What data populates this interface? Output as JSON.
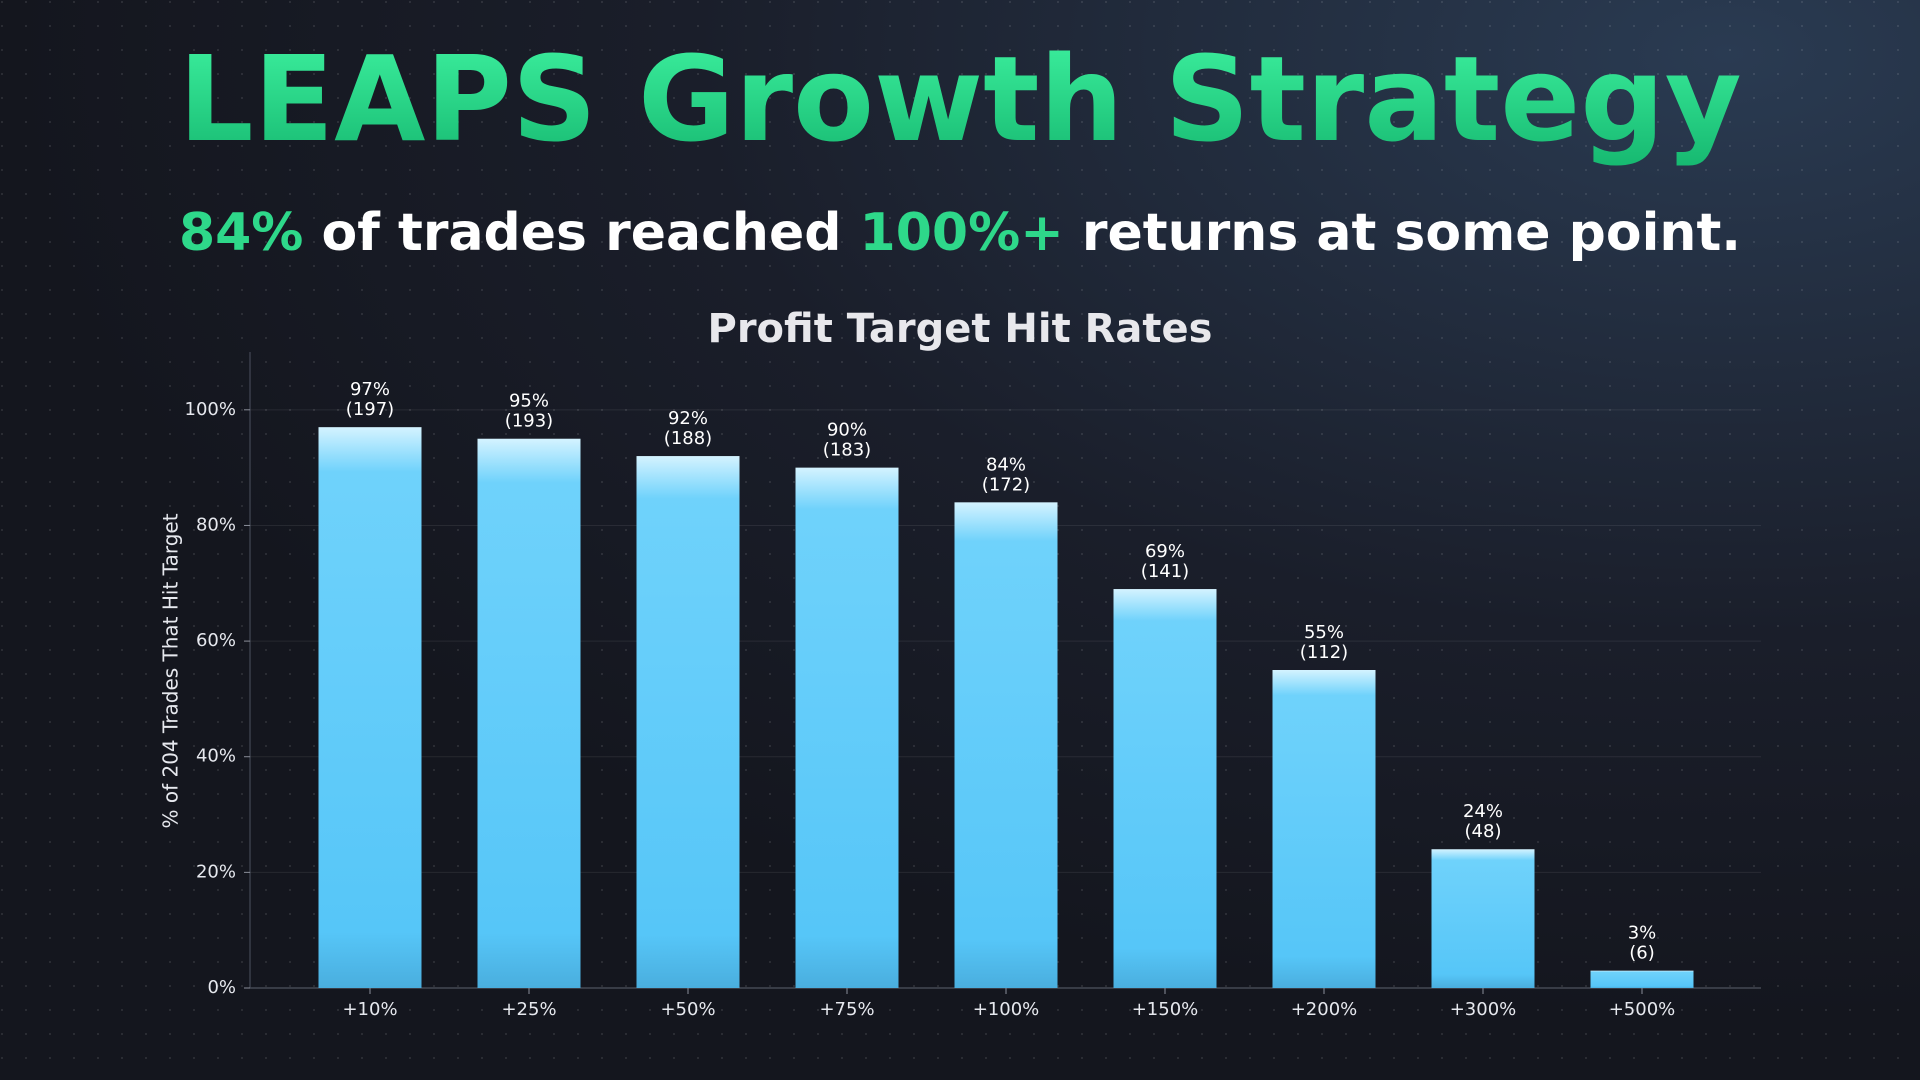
{
  "chart_data": {
    "type": "bar",
    "title": "LEAPS Growth Strategy",
    "subtitle": [
      {
        "text": "84%",
        "color": "#2ed88a"
      },
      {
        "text": " of trades reached ",
        "color": "#ffffff"
      },
      {
        "text": "100%+",
        "color": "#2ed88a"
      },
      {
        "text": " returns at some point.",
        "color": "#ffffff"
      }
    ],
    "chart_title": "Profit Target Hit Rates",
    "y_label": "% of 204 Trades That Hit Target",
    "categories": [
      "+10%",
      "+25%",
      "+50%",
      "+75%",
      "+100%",
      "+150%",
      "+200%",
      "+300%",
      "+500%"
    ],
    "values": [
      97,
      95,
      92,
      90,
      84,
      69,
      55,
      24,
      3
    ],
    "value_labels": [
      "97%",
      "95%",
      "92%",
      "90%",
      "84%",
      "69%",
      "55%",
      "24%",
      "3%"
    ],
    "count_labels": [
      "(197)",
      "(193)",
      "(188)",
      "(183)",
      "(172)",
      "(141)",
      "(112)",
      "(48)",
      "(6)"
    ],
    "color": "#5ac8fa",
    "ylim": [
      0,
      110
    ],
    "yticks": [
      {
        "value": 0,
        "label": "0%"
      },
      {
        "value": 20,
        "label": "20%"
      },
      {
        "value": 40,
        "label": "40%"
      },
      {
        "value": 60,
        "label": "60%"
      },
      {
        "value": 80,
        "label": "80%"
      },
      {
        "value": 100,
        "label": "100%"
      }
    ],
    "grid": true
  }
}
